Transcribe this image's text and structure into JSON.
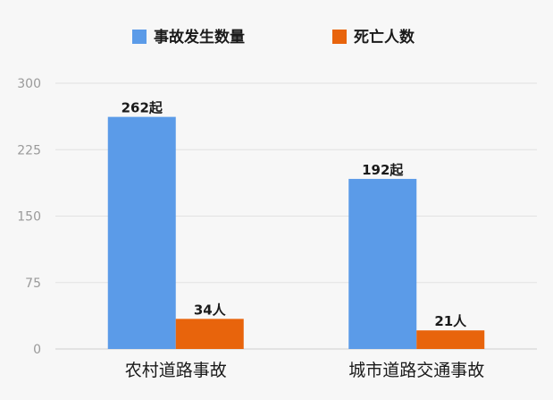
{
  "chart_data": {
    "type": "bar",
    "categories": [
      "农村道路事故",
      "城市道路交通事故"
    ],
    "series": [
      {
        "name": "事故发生数量",
        "color": "#5b9be8",
        "values": [
          262,
          192
        ],
        "labels": [
          "262起",
          "192起"
        ]
      },
      {
        "name": "死亡人数",
        "color": "#e8640c",
        "values": [
          34,
          21
        ],
        "labels": [
          "34人",
          "21人"
        ]
      }
    ],
    "y_ticks": [
      0,
      75,
      150,
      225,
      300
    ],
    "ylim": [
      0,
      300
    ],
    "grid": true,
    "legend_position": "top-center"
  }
}
